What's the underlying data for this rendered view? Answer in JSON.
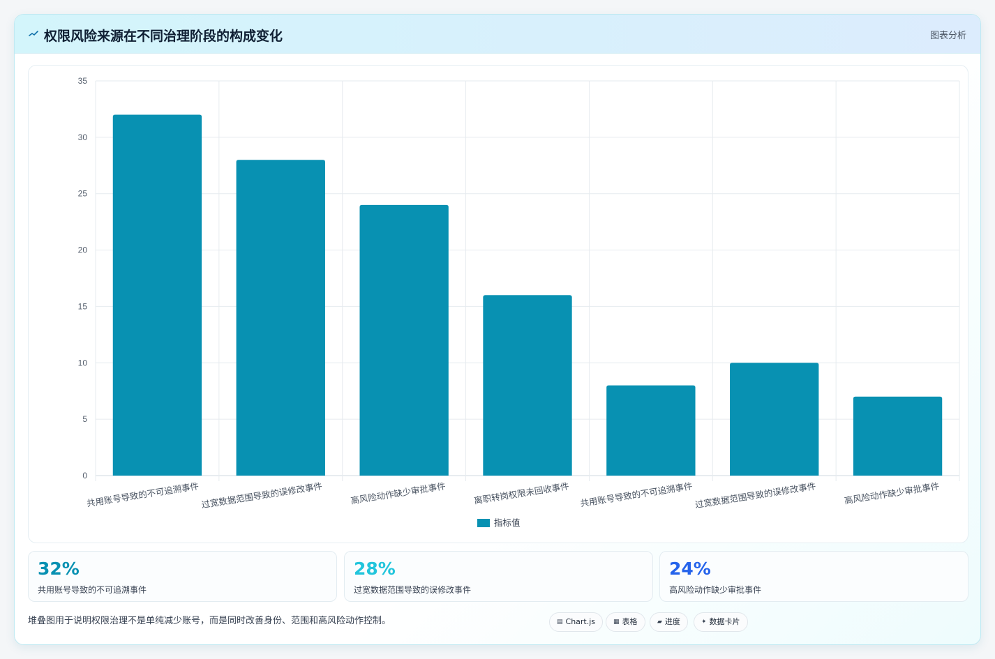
{
  "header": {
    "title": "权限风险来源在不同治理阶段的构成变化",
    "menu_label": "图表分析",
    "icon": "chart-line-icon"
  },
  "chart_data": {
    "type": "bar",
    "categories": [
      "共用账号导致的不可追溯事件",
      "过宽数据范围导致的误修改事件",
      "高风险动作缺少审批事件",
      "离职转岗权限未回收事件",
      "共用账号导致的不可追溯事件",
      "过宽数据范围导致的误修改事件",
      "高风险动作缺少审批事件"
    ],
    "series": [
      {
        "name": "指标值",
        "values": [
          32,
          28,
          24,
          16,
          8,
          10,
          7
        ],
        "color": "#0891b2"
      }
    ],
    "yticks": [
      0,
      5,
      10,
      15,
      20,
      25,
      30,
      35
    ],
    "ylim": [
      0,
      35
    ],
    "grid": true,
    "legend_position": "bottom"
  },
  "kpis": [
    {
      "value": "32%",
      "label": "共用账号导致的不可追溯事件",
      "color": "#0891b2"
    },
    {
      "value": "28%",
      "label": "过宽数据范围导致的误修改事件",
      "color": "#22c5dc"
    },
    {
      "value": "24%",
      "label": "高风险动作缺少审批事件",
      "color": "#2563eb"
    }
  ],
  "footer": {
    "note": "堆叠图用于说明权限治理不是单纯减少账号，而是同时改善身份、范围和高风险动作控制。",
    "tags": [
      {
        "icon": "chart-icon",
        "glyph": "▤",
        "label": "Chart.js"
      },
      {
        "icon": "table-icon",
        "glyph": "▦",
        "label": "表格"
      },
      {
        "icon": "progress-icon",
        "glyph": "▰",
        "label": "进度"
      },
      {
        "icon": "sparkle-icon",
        "glyph": "✦",
        "label": "数据卡片"
      }
    ]
  }
}
